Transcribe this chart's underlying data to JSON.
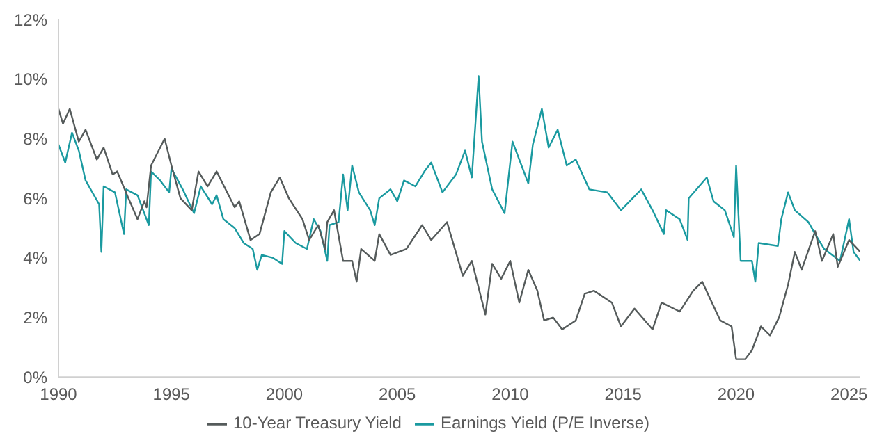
{
  "chart_data": {
    "type": "line",
    "xlim": [
      1990,
      2025.5
    ],
    "xticks": [
      1990,
      1995,
      2000,
      2005,
      2010,
      2015,
      2020,
      2025
    ],
    "ylim": [
      0,
      12
    ],
    "yticks": [
      {
        "value": 0,
        "label": "0%"
      },
      {
        "value": 2,
        "label": "2%"
      },
      {
        "value": 4,
        "label": "4%"
      },
      {
        "value": 6,
        "label": "6%"
      },
      {
        "value": 8,
        "label": "8%"
      },
      {
        "value": 10,
        "label": "10%"
      },
      {
        "value": 12,
        "label": "12%"
      }
    ],
    "grid": false,
    "legend": "bottom",
    "marker": "none",
    "line_style": "solid",
    "series": [
      {
        "name": "Earnings Yield (P/E Inverse)",
        "color": "#1a9aa0",
        "x": [
          1990,
          1990.3,
          1990.6,
          1990.9,
          1991.2,
          1991.5,
          1991.8,
          1991.9,
          1992,
          1992.5,
          1992.9,
          1993,
          1993.5,
          1994,
          1994.1,
          1994.5,
          1994.9,
          1995,
          1995.5,
          1996,
          1996.3,
          1996.8,
          1997,
          1997.3,
          1997.8,
          1998.2,
          1998.6,
          1998.8,
          1999,
          1999.5,
          1999.9,
          2000,
          2000.5,
          2001,
          2001.3,
          2001.6,
          2001.9,
          2002,
          2002.4,
          2002.6,
          2002.8,
          2003,
          2003.3,
          2003.8,
          2004,
          2004.2,
          2004.7,
          2005,
          2005.3,
          2005.8,
          2006.2,
          2006.5,
          2007,
          2007.6,
          2008,
          2008.3,
          2008.6,
          2008.75,
          2009.2,
          2009.75,
          2010.1,
          2010.8,
          2011,
          2011.4,
          2011.7,
          2012.1,
          2012.5,
          2012.9,
          2013.5,
          2014.3,
          2014.9,
          2015.8,
          2016.3,
          2016.8,
          2016.9,
          2017.5,
          2017.85,
          2017.9,
          2018.7,
          2019,
          2019.5,
          2019.9,
          2020,
          2020.2,
          2020.7,
          2020.85,
          2021,
          2021.85,
          2022,
          2022.3,
          2022.6,
          2023.2,
          2023.5,
          2023.9,
          2024.6,
          2025,
          2025.2,
          2025.5
        ],
        "values": [
          7.8,
          7.2,
          8.2,
          7.6,
          6.6,
          6.2,
          5.8,
          4.2,
          6.4,
          6.2,
          4.8,
          6.3,
          6.1,
          5.1,
          6.9,
          6.6,
          6.2,
          7.0,
          6.3,
          5.5,
          6.4,
          5.8,
          6.1,
          5.3,
          5.0,
          4.5,
          4.3,
          3.6,
          4.1,
          4.0,
          3.8,
          4.9,
          4.5,
          4.3,
          5.3,
          4.9,
          3.9,
          5.1,
          5.2,
          6.8,
          5.6,
          7.1,
          6.2,
          5.6,
          5.1,
          6.0,
          6.3,
          5.9,
          6.6,
          6.4,
          6.9,
          7.2,
          6.2,
          6.8,
          7.6,
          6.7,
          10.1,
          7.9,
          6.3,
          5.5,
          7.9,
          6.5,
          7.8,
          9.0,
          7.7,
          8.3,
          7.1,
          7.3,
          6.3,
          6.2,
          5.6,
          6.3,
          5.6,
          4.8,
          5.6,
          5.3,
          4.6,
          6.0,
          6.7,
          5.9,
          5.6,
          4.7,
          7.1,
          3.9,
          3.9,
          3.2,
          4.5,
          4.4,
          5.3,
          6.2,
          5.6,
          5.2,
          4.8,
          4.3,
          3.9,
          5.3,
          4.2,
          3.9
        ]
      },
      {
        "name": "10-Year Treasury Yield",
        "color": "#555b5b",
        "x": [
          1990,
          1990.2,
          1990.5,
          1990.9,
          1991.2,
          1991.7,
          1992,
          1992.4,
          1992.6,
          1993.1,
          1993.5,
          1993.8,
          1993.9,
          1994.1,
          1994.7,
          1995,
          1995.4,
          1995.9,
          1996.2,
          1996.6,
          1997,
          1997.8,
          1998,
          1998.5,
          1998.9,
          1999.4,
          1999.8,
          2000.2,
          2000.8,
          2001.1,
          2001.5,
          2001.8,
          2001.9,
          2002.2,
          2002.6,
          2003,
          2003.2,
          2003.4,
          2004,
          2004.2,
          2004.7,
          2005.4,
          2006.1,
          2006.5,
          2007.2,
          2007.9,
          2008.3,
          2008.9,
          2009.2,
          2009.6,
          2010,
          2010.4,
          2010.8,
          2011.2,
          2011.5,
          2011.9,
          2012.3,
          2012.9,
          2013.3,
          2013.7,
          2014.5,
          2014.9,
          2015.5,
          2016.3,
          2016.7,
          2017.5,
          2018.1,
          2018.5,
          2019.3,
          2019.8,
          2020,
          2020.4,
          2020.7,
          2021.1,
          2021.5,
          2021.9,
          2022.3,
          2022.6,
          2022.9,
          2023.5,
          2023.8,
          2024.3,
          2024.5,
          2025,
          2025.5
        ],
        "values": [
          9.0,
          8.5,
          9.0,
          7.9,
          8.3,
          7.3,
          7.7,
          6.8,
          6.9,
          6.0,
          5.3,
          5.9,
          5.7,
          7.1,
          8.0,
          7.1,
          6.0,
          5.6,
          6.9,
          6.4,
          6.9,
          5.7,
          5.9,
          4.6,
          4.8,
          6.2,
          6.7,
          6.0,
          5.3,
          4.6,
          5.1,
          4.3,
          5.2,
          5.6,
          3.9,
          3.9,
          3.2,
          4.3,
          3.9,
          4.8,
          4.1,
          4.3,
          5.1,
          4.6,
          5.2,
          3.4,
          3.9,
          2.1,
          3.8,
          3.3,
          3.9,
          2.5,
          3.6,
          2.9,
          1.9,
          2.0,
          1.6,
          1.9,
          2.8,
          2.9,
          2.5,
          1.7,
          2.3,
          1.6,
          2.5,
          2.2,
          2.9,
          3.2,
          1.9,
          1.7,
          0.6,
          0.6,
          0.9,
          1.7,
          1.4,
          2.0,
          3.1,
          4.2,
          3.6,
          4.9,
          3.9,
          4.8,
          3.7,
          4.6,
          4.2
        ]
      }
    ]
  }
}
